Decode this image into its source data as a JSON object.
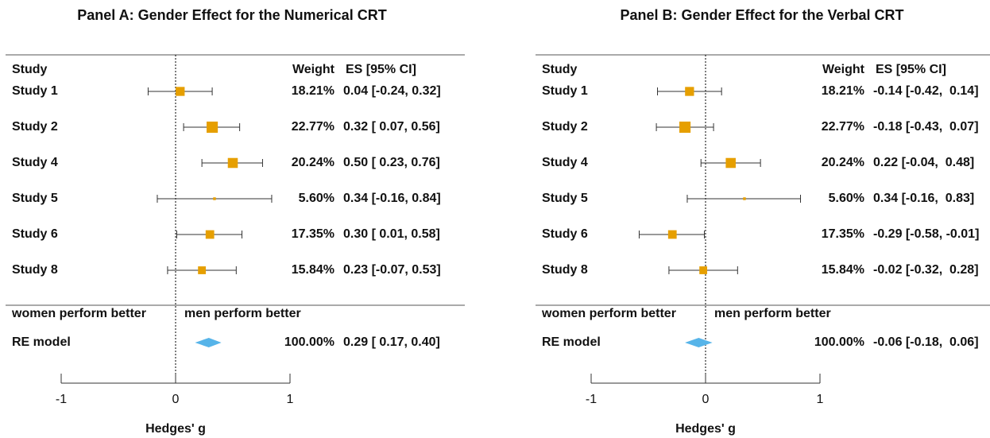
{
  "chart_data": [
    {
      "type": "forest",
      "title": "Panel A: Gender Effect for the Numerical CRT",
      "columns": [
        "Study",
        "Weight",
        "ES [95% CI]"
      ],
      "categories": [
        "Study 1",
        "Study 2",
        "Study 4",
        "Study 5",
        "Study 6",
        "Study 8"
      ],
      "values": [
        0.04,
        0.32,
        0.5,
        0.34,
        0.3,
        0.23
      ],
      "lower": [
        -0.24,
        0.07,
        0.23,
        -0.16,
        0.01,
        -0.07
      ],
      "upper": [
        0.32,
        0.56,
        0.76,
        0.84,
        0.58,
        0.53
      ],
      "value_labels": [
        "0.04 [-0.24, 0.32]",
        "0.32 [ 0.07, 0.56]",
        "0.50 [ 0.23, 0.76]",
        "0.34 [-0.16, 0.84]",
        "0.30 [ 0.01, 0.58]",
        "0.23 [-0.07, 0.53]"
      ],
      "weights": [
        18.21,
        22.77,
        20.24,
        5.6,
        17.35,
        15.84
      ],
      "weight_labels": [
        "18.21%",
        "22.77%",
        "20.24%",
        "5.60%",
        "17.35%",
        "15.84%"
      ],
      "color": "#e69f00",
      "annotations": [
        "women perform better",
        "men perform better"
      ],
      "summary": {
        "label": "RE model",
        "value": 0.29,
        "lower": 0.17,
        "upper": 0.4,
        "value_label": "0.29 [ 0.17, 0.40]",
        "weight": 100,
        "weight_label": "100.00%",
        "color": "#56b4e9"
      },
      "xlabel": "Hedges' g",
      "xlim": [
        -1,
        1
      ],
      "xticks": [
        -1,
        0,
        1
      ]
    },
    {
      "type": "forest",
      "title": "Panel B: Gender Effect for the Verbal CRT",
      "columns": [
        "Study",
        "Weight",
        "ES [95% CI]"
      ],
      "categories": [
        "Study 1",
        "Study 2",
        "Study 4",
        "Study 5",
        "Study 6",
        "Study 8"
      ],
      "values": [
        -0.14,
        -0.18,
        0.22,
        0.34,
        -0.29,
        -0.02
      ],
      "lower": [
        -0.42,
        -0.43,
        -0.04,
        -0.16,
        -0.58,
        -0.32
      ],
      "upper": [
        0.14,
        0.07,
        0.48,
        0.83,
        -0.01,
        0.28
      ],
      "value_labels": [
        "-0.14 [-0.42,  0.14]",
        "-0.18 [-0.43,  0.07]",
        "0.22 [-0.04,  0.48]",
        "0.34 [-0.16,  0.83]",
        "-0.29 [-0.58, -0.01]",
        "-0.02 [-0.32,  0.28]"
      ],
      "weights": [
        18.21,
        22.77,
        20.24,
        5.6,
        17.35,
        15.84
      ],
      "weight_labels": [
        "18.21%",
        "22.77%",
        "20.24%",
        "5.60%",
        "17.35%",
        "15.84%"
      ],
      "color": "#e69f00",
      "annotations": [
        "women perform better",
        "men perform better"
      ],
      "summary": {
        "label": "RE model",
        "value": -0.06,
        "lower": -0.18,
        "upper": 0.06,
        "value_label": "-0.06 [-0.18,  0.06]",
        "weight": 100,
        "weight_label": "100.00%",
        "color": "#56b4e9"
      },
      "xlabel": "Hedges' g",
      "xlim": [
        -1,
        1
      ],
      "xticks": [
        -1,
        0,
        1
      ]
    }
  ]
}
